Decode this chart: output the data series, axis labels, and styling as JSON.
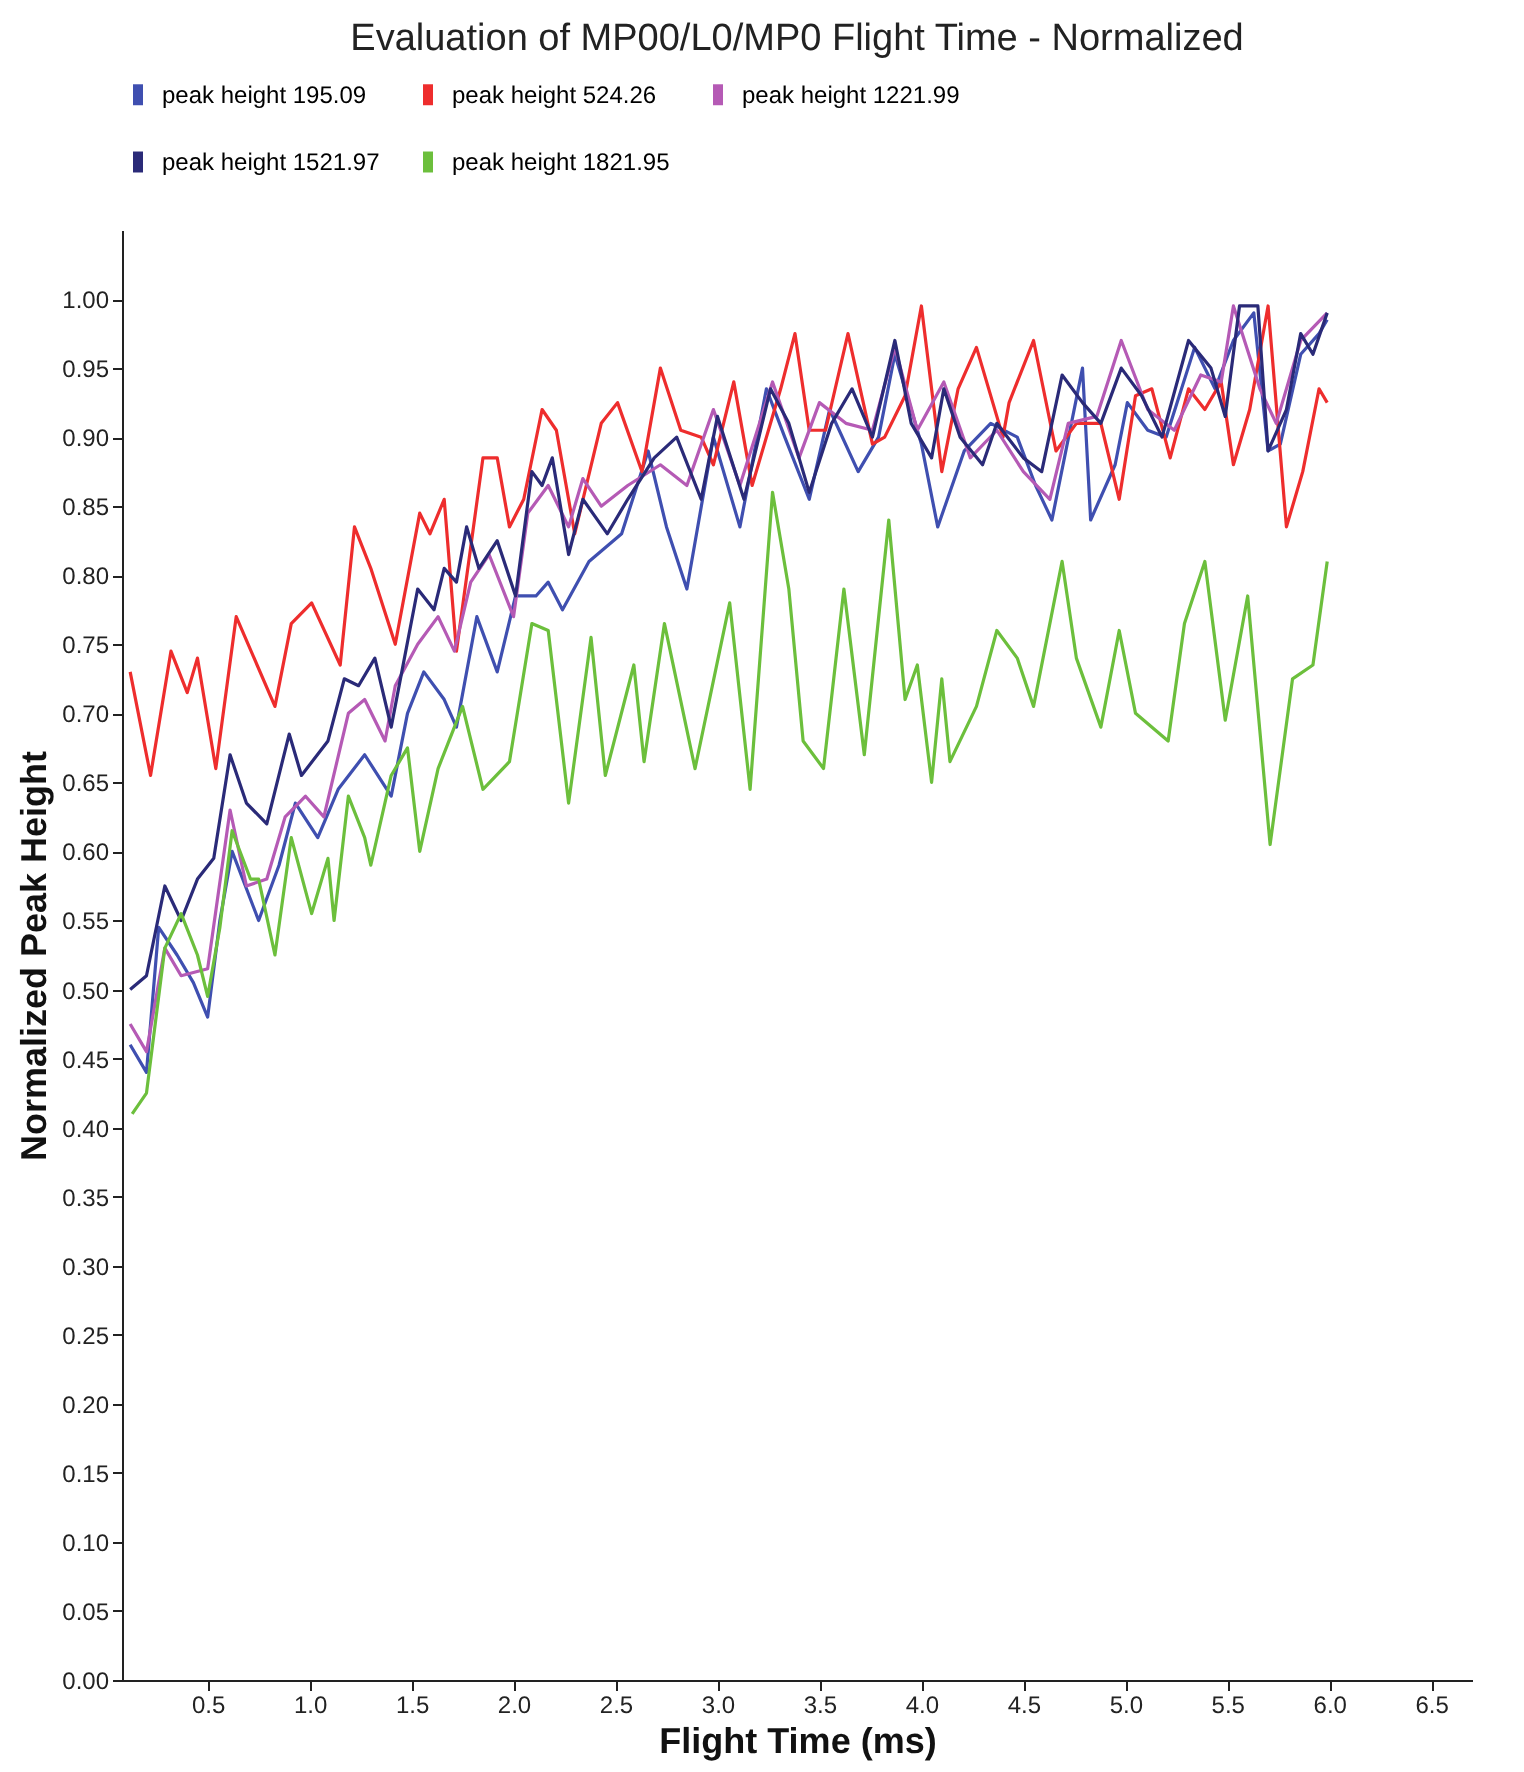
{
  "chart_data": {
    "type": "line",
    "title": "Evaluation of MP00/L0/MP0 Flight Time - Normalized",
    "xlabel": "Flight Time (ms)",
    "ylabel": "Normalized Peak Height",
    "xlim": [
      0.08,
      6.7
    ],
    "xticks": [
      0.5,
      {
        "value": 1,
        "label": "1.0"
      },
      1.5,
      {
        "value": 2,
        "label": "2.0"
      },
      2.5,
      {
        "value": 3,
        "label": "3.0"
      },
      3.5,
      {
        "value": 4,
        "label": "4.0"
      },
      4.5,
      {
        "value": 5,
        "label": "5.0"
      },
      5.5,
      {
        "value": 6,
        "label": "6.0"
      },
      6.5
    ],
    "ylim": [
      0,
      1.05
    ],
    "yticks": [
      {
        "value": 0,
        "label": "0.00"
      },
      0.05,
      {
        "value": 0.1,
        "label": "0.10"
      },
      0.15,
      {
        "value": 0.2,
        "label": "0.20"
      },
      0.25,
      {
        "value": 0.3,
        "label": "0.30"
      },
      0.35,
      {
        "value": 0.4,
        "label": "0.40"
      },
      0.45,
      {
        "value": 0.5,
        "label": "0.50"
      },
      0.55,
      {
        "value": 0.6,
        "label": "0.60"
      },
      0.65,
      {
        "value": 0.7,
        "label": "0.70"
      },
      0.75,
      {
        "value": 0.8,
        "label": "0.80"
      },
      0.85,
      {
        "value": 0.9,
        "label": "0.90"
      },
      0.95,
      {
        "value": 1,
        "label": "1.00"
      }
    ],
    "legend": "top",
    "series": [
      {
        "name": "peak height 195.09",
        "color": "#3f4fb0",
        "x": [
          0.12,
          0.2,
          0.26,
          0.35,
          0.43,
          0.5,
          0.56,
          0.62,
          0.75,
          0.85,
          0.93,
          1.04,
          1.14,
          1.27,
          1.4,
          1.48,
          1.56,
          1.66,
          1.72,
          1.82,
          1.92,
          2.01,
          2.11,
          2.17,
          2.24,
          2.37,
          2.53,
          2.66,
          2.75,
          2.85,
          2.98,
          3.11,
          3.24,
          3.33,
          3.45,
          3.55,
          3.69,
          3.79,
          3.87,
          4.0,
          4.08,
          4.21,
          4.34,
          4.47,
          4.56,
          4.64,
          4.79,
          4.83,
          4.95,
          5.01,
          5.11,
          5.2,
          5.34,
          5.44,
          5.53,
          5.63,
          5.7,
          5.76,
          5.86,
          5.95,
          5.99
        ],
        "values": [
          0.46,
          0.44,
          0.545,
          0.525,
          0.505,
          0.48,
          0.55,
          0.6,
          0.55,
          0.59,
          0.635,
          0.61,
          0.645,
          0.67,
          0.64,
          0.7,
          0.73,
          0.71,
          0.69,
          0.77,
          0.73,
          0.785,
          0.785,
          0.795,
          0.775,
          0.81,
          0.83,
          0.89,
          0.835,
          0.79,
          0.9,
          0.835,
          0.935,
          0.9,
          0.855,
          0.92,
          0.875,
          0.9,
          0.96,
          0.895,
          0.835,
          0.89,
          0.91,
          0.9,
          0.865,
          0.84,
          0.95,
          0.84,
          0.88,
          0.925,
          0.905,
          0.9,
          0.965,
          0.935,
          0.97,
          0.99,
          0.89,
          0.895,
          0.96,
          0.975,
          0.985
        ]
      },
      {
        "name": "peak height 524.26",
        "color": "#ee2d2d",
        "x": [
          0.12,
          0.22,
          0.32,
          0.4,
          0.45,
          0.54,
          0.64,
          0.83,
          0.91,
          1.01,
          1.15,
          1.22,
          1.3,
          1.42,
          1.54,
          1.59,
          1.66,
          1.72,
          1.85,
          1.92,
          1.98,
          2.05,
          2.14,
          2.21,
          2.3,
          2.43,
          2.51,
          2.63,
          2.72,
          2.82,
          2.92,
          2.98,
          3.08,
          3.17,
          3.31,
          3.38,
          3.45,
          3.53,
          3.64,
          3.76,
          3.82,
          3.92,
          4.0,
          4.1,
          4.18,
          4.27,
          4.4,
          4.43,
          4.55,
          4.66,
          4.76,
          4.88,
          4.97,
          5.05,
          5.13,
          5.22,
          5.31,
          5.39,
          5.47,
          5.53,
          5.61,
          5.7,
          5.79,
          5.87,
          5.95,
          5.99
        ],
        "values": [
          0.73,
          0.655,
          0.745,
          0.715,
          0.74,
          0.66,
          0.77,
          0.705,
          0.765,
          0.78,
          0.735,
          0.835,
          0.805,
          0.75,
          0.845,
          0.83,
          0.855,
          0.745,
          0.885,
          0.885,
          0.835,
          0.855,
          0.92,
          0.905,
          0.83,
          0.91,
          0.925,
          0.875,
          0.95,
          0.905,
          0.9,
          0.88,
          0.94,
          0.865,
          0.935,
          0.975,
          0.905,
          0.905,
          0.975,
          0.895,
          0.9,
          0.93,
          0.995,
          0.875,
          0.935,
          0.965,
          0.9,
          0.925,
          0.97,
          0.89,
          0.91,
          0.91,
          0.855,
          0.93,
          0.935,
          0.885,
          0.935,
          0.92,
          0.94,
          0.88,
          0.92,
          0.995,
          0.835,
          0.875,
          0.935,
          0.925
        ]
      },
      {
        "name": "peak height 1221.99",
        "color": "#b55ab5",
        "x": [
          0.12,
          0.2,
          0.29,
          0.37,
          0.5,
          0.61,
          0.69,
          0.79,
          0.88,
          0.98,
          1.07,
          1.19,
          1.27,
          1.37,
          1.42,
          1.53,
          1.63,
          1.71,
          1.79,
          1.88,
          2.0,
          2.07,
          2.17,
          2.27,
          2.34,
          2.43,
          2.56,
          2.72,
          2.85,
          2.98,
          3.11,
          3.27,
          3.4,
          3.5,
          3.63,
          3.76,
          3.87,
          3.98,
          4.11,
          4.24,
          4.37,
          4.5,
          4.63,
          4.72,
          4.86,
          4.98,
          5.11,
          5.24,
          5.37,
          5.47,
          5.53,
          5.66,
          5.74,
          5.86,
          5.99
        ],
        "values": [
          0.475,
          0.455,
          0.53,
          0.51,
          0.515,
          0.63,
          0.575,
          0.58,
          0.625,
          0.64,
          0.625,
          0.7,
          0.71,
          0.68,
          0.72,
          0.75,
          0.77,
          0.745,
          0.795,
          0.815,
          0.77,
          0.845,
          0.865,
          0.835,
          0.87,
          0.85,
          0.865,
          0.88,
          0.865,
          0.92,
          0.865,
          0.94,
          0.885,
          0.925,
          0.91,
          0.905,
          0.965,
          0.905,
          0.94,
          0.885,
          0.905,
          0.875,
          0.855,
          0.91,
          0.915,
          0.97,
          0.92,
          0.905,
          0.945,
          0.94,
          0.995,
          0.935,
          0.91,
          0.97,
          0.99
        ]
      },
      {
        "name": "peak height 1521.97",
        "color": "#2a2a78",
        "x": [
          0.12,
          0.2,
          0.29,
          0.37,
          0.45,
          0.53,
          0.61,
          0.69,
          0.79,
          0.9,
          0.96,
          1.09,
          1.17,
          1.24,
          1.32,
          1.4,
          1.53,
          1.61,
          1.66,
          1.72,
          1.77,
          1.83,
          1.92,
          2.01,
          2.09,
          2.14,
          2.19,
          2.27,
          2.34,
          2.46,
          2.56,
          2.69,
          2.8,
          2.92,
          3.0,
          3.13,
          3.26,
          3.35,
          3.45,
          3.56,
          3.66,
          3.76,
          3.87,
          3.95,
          4.05,
          4.11,
          4.19,
          4.3,
          4.37,
          4.5,
          4.59,
          4.69,
          4.79,
          4.88,
          4.98,
          5.08,
          5.18,
          5.31,
          5.42,
          5.49,
          5.56,
          5.65,
          5.7,
          5.79,
          5.86,
          5.92,
          5.99
        ],
        "values": [
          0.5,
          0.51,
          0.575,
          0.55,
          0.58,
          0.595,
          0.67,
          0.635,
          0.62,
          0.685,
          0.655,
          0.68,
          0.725,
          0.72,
          0.74,
          0.69,
          0.79,
          0.775,
          0.805,
          0.795,
          0.835,
          0.805,
          0.825,
          0.785,
          0.875,
          0.865,
          0.885,
          0.815,
          0.855,
          0.83,
          0.855,
          0.885,
          0.9,
          0.855,
          0.915,
          0.855,
          0.935,
          0.91,
          0.86,
          0.91,
          0.935,
          0.9,
          0.97,
          0.91,
          0.885,
          0.935,
          0.9,
          0.88,
          0.91,
          0.885,
          0.875,
          0.945,
          0.925,
          0.91,
          0.95,
          0.93,
          0.9,
          0.97,
          0.95,
          0.915,
          0.995,
          0.995,
          0.89,
          0.92,
          0.975,
          0.96,
          0.99
        ]
      },
      {
        "name": "peak height 1821.95",
        "color": "#6cbf3c",
        "x": [
          0.13,
          0.2,
          0.29,
          0.37,
          0.45,
          0.5,
          0.56,
          0.62,
          0.71,
          0.75,
          0.83,
          0.91,
          1.01,
          1.09,
          1.12,
          1.19,
          1.27,
          1.3,
          1.4,
          1.48,
          1.54,
          1.63,
          1.75,
          1.85,
          1.98,
          2.09,
          2.17,
          2.27,
          2.38,
          2.45,
          2.59,
          2.64,
          2.74,
          2.89,
          3.06,
          3.16,
          3.27,
          3.35,
          3.42,
          3.52,
          3.62,
          3.72,
          3.84,
          3.92,
          3.98,
          4.05,
          4.1,
          4.14,
          4.27,
          4.37,
          4.47,
          4.55,
          4.69,
          4.76,
          4.88,
          4.97,
          5.05,
          5.21,
          5.29,
          5.39,
          5.49,
          5.6,
          5.71,
          5.82,
          5.92,
          5.99
        ],
        "values": [
          0.41,
          0.425,
          0.53,
          0.555,
          0.525,
          0.495,
          0.545,
          0.615,
          0.58,
          0.58,
          0.525,
          0.61,
          0.555,
          0.595,
          0.55,
          0.64,
          0.61,
          0.59,
          0.655,
          0.675,
          0.6,
          0.66,
          0.705,
          0.645,
          0.665,
          0.765,
          0.76,
          0.635,
          0.755,
          0.655,
          0.735,
          0.665,
          0.765,
          0.66,
          0.78,
          0.645,
          0.86,
          0.79,
          0.68,
          0.66,
          0.79,
          0.67,
          0.84,
          0.71,
          0.735,
          0.65,
          0.725,
          0.665,
          0.705,
          0.76,
          0.74,
          0.705,
          0.81,
          0.74,
          0.69,
          0.76,
          0.7,
          0.68,
          0.765,
          0.81,
          0.695,
          0.785,
          0.605,
          0.725,
          0.735,
          0.81
        ]
      }
    ]
  }
}
